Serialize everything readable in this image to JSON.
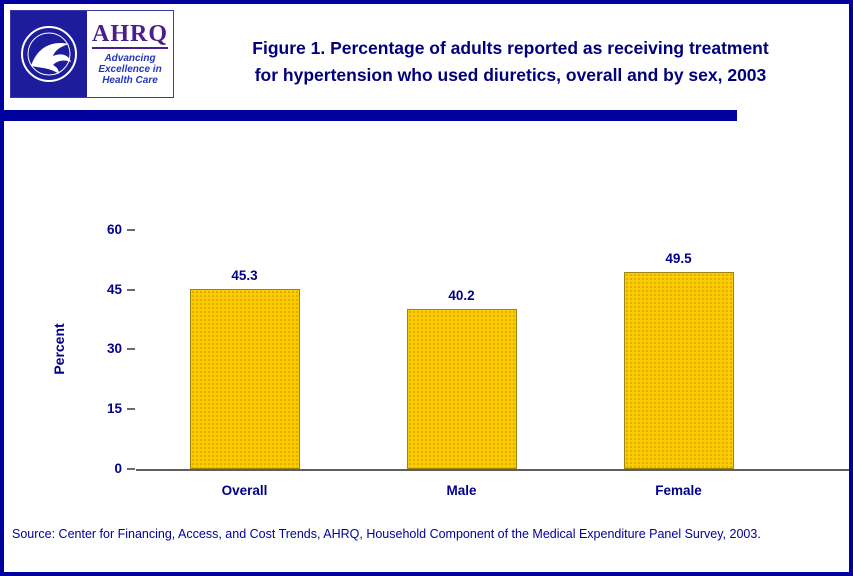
{
  "page": {
    "border_color": "#00009C",
    "background": "#FFFFFF"
  },
  "header": {
    "title_line1": "Figure 1. Percentage of adults reported as receiving treatment",
    "title_line2": "for hypertension who used diuretics, overall and by sex, 2003",
    "ahrq_logo": {
      "acronym": "AHRQ",
      "tagline": [
        "Advancing",
        "Excellence in",
        "Health Care"
      ]
    }
  },
  "chart_data": {
    "type": "bar",
    "categories": [
      "Overall",
      "Male",
      "Female"
    ],
    "values": [
      45.3,
      40.2,
      49.5
    ],
    "value_labels": [
      "45.3",
      "40.2",
      "49.5"
    ],
    "title": "Figure 1. Percentage of adults reported as receiving treatment for hypertension who used diuretics, overall and by sex, 2003",
    "xlabel": "",
    "ylabel": "Percent",
    "ylim": [
      0,
      60
    ],
    "y_ticks": [
      "60",
      "45",
      "30",
      "15",
      "0"
    ],
    "grid": false,
    "legend": "none",
    "bar_color": "#FFCC00",
    "bar_border_color": "#9C8412"
  },
  "source": "Source: Center for Financing, Access, and Cost Trends, AHRQ, Household Component of the Medical Expenditure Panel Survey, 2003."
}
